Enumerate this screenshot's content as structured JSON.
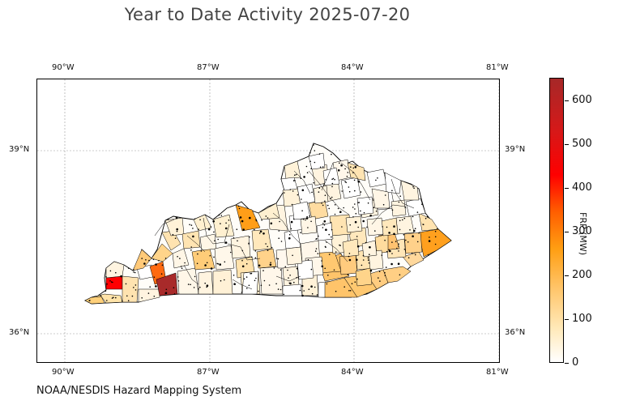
{
  "title": "Year to Date Activity 2025-07-20",
  "credit": "NOAA/NESDIS Hazard Mapping System",
  "axes": {
    "lon_ticks": [
      "90°W",
      "87°W",
      "84°W",
      "81°W"
    ],
    "lat_ticks": [
      "39°N",
      "36°N"
    ],
    "lon_range": [
      -90.6,
      -81.0
    ],
    "lat_range": [
      35.6,
      40.3
    ]
  },
  "colorbar": {
    "label": "FRP (MW)",
    "ticks": [
      "0",
      "100",
      "200",
      "300",
      "400",
      "500",
      "600"
    ],
    "range": [
      0,
      650
    ],
    "colormap": [
      "#ffffff",
      "#ffe9b8",
      "#ffc56a",
      "#ff9e12",
      "#ff5e00",
      "#ff0000",
      "#d51919",
      "#a62828"
    ]
  },
  "region": "Kentucky counties",
  "colors": {
    "county_outline": "#000000",
    "fire_point": "#000000",
    "grid": "#9a9a9a"
  }
}
